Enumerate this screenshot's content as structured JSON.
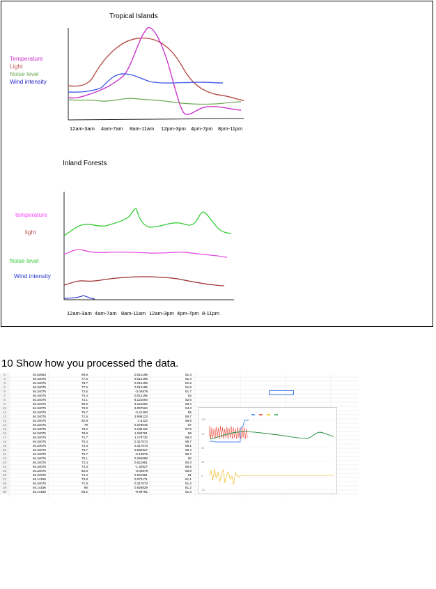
{
  "top_chart": {
    "title": "Tropical Islands",
    "legend": [
      {
        "label": "Temperature",
        "color": "#cc33cc"
      },
      {
        "label": "Light",
        "color": "#b5524c"
      },
      {
        "label": "Noise level",
        "color": "#6aa84f"
      },
      {
        "label": "Wind intensity",
        "color": "#2222cc"
      }
    ],
    "x_ticks": [
      "12am-3am",
      "4am-7am",
      "8am-11am",
      "12pm-3pm",
      "4pm-7pm",
      "8pm-11pm"
    ]
  },
  "bottom_chart": {
    "title": "Inland Forests",
    "labels": [
      {
        "label": "temperature",
        "color": "#ff44ff"
      },
      {
        "label": "light",
        "color": "#b5524c"
      },
      {
        "label": "Noise level",
        "color": "#33cc33"
      },
      {
        "label": "Wind intensity",
        "color": "#2233cc"
      }
    ],
    "x_ticks": [
      "12am-3am",
      "4am-7am",
      "8am-11am",
      "12am-3pm",
      "4pm-7pm",
      "8-11pm"
    ]
  },
  "question": "10 Show how you processed the data.",
  "sheet_rows": [
    [
      "2",
      "46.53663",
      "69.8",
      "0.012195",
      "51.4"
    ],
    [
      "3",
      "46.34075",
      "77.5",
      "0.012195",
      "51.4"
    ],
    [
      "4",
      "46.34075",
      "78.7",
      "0.012195",
      "51.5"
    ],
    [
      "5",
      "46.34075",
      "77.6",
      "0.012195",
      "51.5"
    ],
    [
      "6",
      "46.34075",
      "72.6",
      "-3.04878",
      "51.7"
    ],
    [
      "7",
      "46.34075",
      "70.4",
      "0.012195",
      "52"
    ],
    [
      "8",
      "46.34075",
      "72.1",
      "8.121064",
      "52.6"
    ],
    [
      "9",
      "46.34075",
      "80.9",
      "3.121062",
      "53.4"
    ],
    [
      "10",
      "46.34075",
      "73.8",
      "9.097564",
      "54.3"
    ],
    [
      "11",
      "46.34075",
      "75.7",
      "-0.41463",
      "55"
    ],
    [
      "12",
      "46.34075",
      "71.5",
      "2.695123",
      "55.7"
    ],
    [
      "13",
      "46.34075",
      "82.8",
      "-1.5122",
      "56.5"
    ],
    [
      "14",
      "46.34075",
      "79",
      "0.378049",
      "57"
    ],
    [
      "15",
      "46.34075",
      "78.2",
      "0.195122",
      "57.6"
    ],
    [
      "16",
      "46.34075",
      "78.9",
      "1.048781",
      "58"
    ],
    [
      "17",
      "46.34075",
      "72.7",
      "1.170732",
      "58.3"
    ],
    [
      "18",
      "46.34075",
      "70.4",
      "0.317073",
      "58.7"
    ],
    [
      "19",
      "46.34075",
      "72.3",
      "0.317073",
      "59.1"
    ],
    [
      "20",
      "46.34075",
      "78.7",
      "0.682927",
      "59.4"
    ],
    [
      "21",
      "46.34075",
      "76.7",
      "-0.10976",
      "59.7"
    ],
    [
      "22",
      "46.34075",
      "75.1",
      "0.256098",
      "60"
    ],
    [
      "23",
      "46.34075",
      "72.3",
      "0.621951",
      "60.4"
    ],
    [
      "24",
      "46.34075",
      "72.3",
      "-1.32927",
      "60.6"
    ],
    [
      "25",
      "46.34075",
      "82.6",
      "-0.04878",
      "60.8"
    ],
    [
      "26",
      "46.34075",
      "74.4",
      "0.621951",
      "61"
    ],
    [
      "27",
      "46.14186",
      "73.8",
      "0.073171",
      "61.1"
    ],
    [
      "28",
      "46.34075",
      "71.9",
      "0.317073",
      "61.2"
    ],
    [
      "29",
      "46.14186",
      "86",
      "0.926829",
      "61.2"
    ],
    [
      "30",
      "46.14186",
      "85.2",
      "-9.98781",
      "61.3"
    ]
  ],
  "mini_chart": {
    "y_ticks": [
      "100",
      "75",
      "50",
      "25",
      "0",
      "-25"
    ],
    "legend_colors": [
      "#4285f4",
      "#ea4335",
      "#fbbc04",
      "#34a853"
    ],
    "series_colors": {
      "red": "#ea4335",
      "green": "#1e8e3e",
      "blue": "#4a86e8",
      "orange": "#f4b400"
    }
  }
}
